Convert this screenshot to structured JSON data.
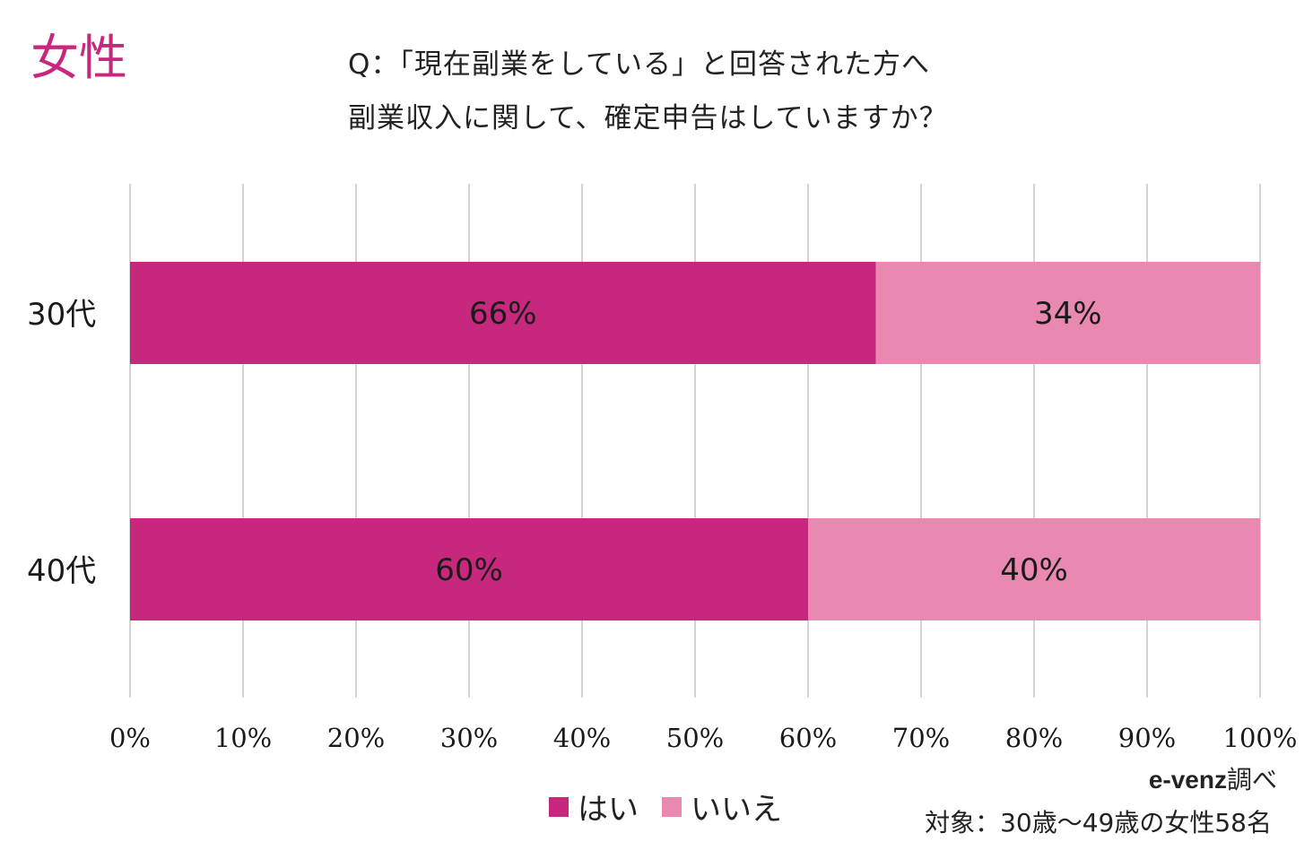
{
  "header": {
    "gender": "女性",
    "question_line1": "Q：「現在副業をしている」と回答された方へ",
    "question_line2": "副業収入に関して、確定申告はしていますか？"
  },
  "colors": {
    "accent": "#c7277c",
    "yes": "#c7277c",
    "no": "#e988b1",
    "grid": "#d4d4d4"
  },
  "chart_data": {
    "type": "bar",
    "orientation": "horizontal",
    "stacked": true,
    "categories": [
      "30代",
      "40代"
    ],
    "series": [
      {
        "name": "はい",
        "values": [
          66,
          60
        ]
      },
      {
        "name": "いいえ",
        "values": [
          34,
          40
        ]
      }
    ],
    "value_labels": [
      [
        "66%",
        "60%"
      ],
      [
        "34%",
        "40%"
      ]
    ],
    "x_ticks": [
      "0%",
      "10%",
      "20%",
      "30%",
      "40%",
      "50%",
      "60%",
      "70%",
      "80%",
      "90%",
      "100%"
    ],
    "xlim": [
      0,
      100
    ],
    "grid": true,
    "legend_position": "bottom"
  },
  "legend": {
    "yes_label": "はい",
    "no_label": "いいえ"
  },
  "footer": {
    "source_brand": "e-venz",
    "source_suffix": "調べ",
    "sample": "対象：30歳〜49歳の女性58名"
  }
}
